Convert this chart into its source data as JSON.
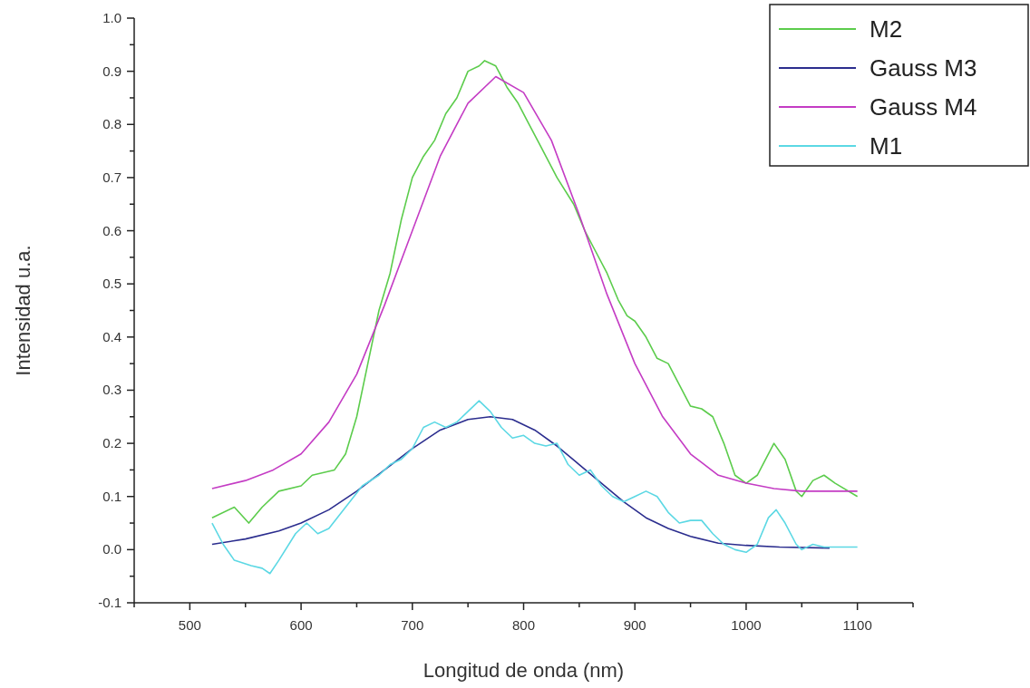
{
  "chart_data": {
    "type": "line",
    "xlabel": "Longitud de onda (nm)",
    "ylabel": "Intensidad u.a.",
    "xlim": [
      450,
      1150
    ],
    "ylim": [
      -0.1,
      1.0
    ],
    "xticks": [
      {
        "value": 450,
        "label": null
      },
      500,
      {
        "value": 550,
        "label": null
      },
      600,
      {
        "value": 650,
        "label": null
      },
      700,
      {
        "value": 750,
        "label": null
      },
      800,
      {
        "value": 850,
        "label": null
      },
      900,
      {
        "value": 950,
        "label": null
      },
      1000,
      {
        "value": 1050,
        "label": null
      },
      1100,
      {
        "value": 1150,
        "label": null
      }
    ],
    "yticks": [
      -0.1,
      {
        "value": -0.05,
        "label": null
      },
      {
        "value": 0,
        "label": "0.0"
      },
      {
        "value": 0.05,
        "label": null
      },
      0.1,
      {
        "value": 0.15,
        "label": null
      },
      0.2,
      {
        "value": 0.25,
        "label": null
      },
      0.3,
      {
        "value": 0.35,
        "label": null
      },
      0.4,
      {
        "value": 0.45,
        "label": null
      },
      0.5,
      {
        "value": 0.55,
        "label": null
      },
      0.6,
      {
        "value": 0.65,
        "label": null
      },
      0.7,
      {
        "value": 0.75,
        "label": null
      },
      0.8,
      {
        "value": 0.85,
        "label": null
      },
      0.9,
      {
        "value": 0.95,
        "label": null
      },
      {
        "value": 1,
        "label": "1.0"
      }
    ],
    "grid": false,
    "legend": "top right",
    "marker": "none",
    "line_style": "solid",
    "series": [
      {
        "name": "M2",
        "color": "#5ccc4c",
        "x": [
          520,
          540,
          553,
          565,
          580,
          600,
          610,
          630,
          640,
          650,
          660,
          670,
          680,
          690,
          700,
          710,
          720,
          730,
          740,
          750,
          760,
          765,
          775,
          785,
          795,
          805,
          815,
          830,
          845,
          855,
          865,
          875,
          885,
          893,
          900,
          910,
          920,
          930,
          940,
          950,
          960,
          970,
          980,
          990,
          1000,
          1010,
          1025,
          1035,
          1045,
          1050,
          1060,
          1070,
          1080,
          1100
        ],
        "values": [
          0.06,
          0.08,
          0.05,
          0.08,
          0.11,
          0.12,
          0.14,
          0.15,
          0.18,
          0.25,
          0.35,
          0.45,
          0.52,
          0.62,
          0.7,
          0.74,
          0.77,
          0.82,
          0.85,
          0.9,
          0.91,
          0.92,
          0.91,
          0.87,
          0.84,
          0.8,
          0.76,
          0.7,
          0.65,
          0.6,
          0.56,
          0.52,
          0.47,
          0.44,
          0.43,
          0.4,
          0.36,
          0.35,
          0.31,
          0.27,
          0.265,
          0.25,
          0.2,
          0.14,
          0.125,
          0.14,
          0.2,
          0.17,
          0.11,
          0.1,
          0.13,
          0.14,
          0.125,
          0.1
        ]
      },
      {
        "name": "Gauss M3",
        "color": "#2b2d8e",
        "x": [
          520,
          550,
          580,
          600,
          625,
          650,
          675,
          700,
          725,
          750,
          770,
          790,
          810,
          830,
          850,
          870,
          890,
          910,
          930,
          950,
          975,
          1000,
          1030,
          1075
        ],
        "values": [
          0.01,
          0.02,
          0.035,
          0.05,
          0.075,
          0.11,
          0.15,
          0.19,
          0.225,
          0.245,
          0.25,
          0.245,
          0.225,
          0.195,
          0.16,
          0.125,
          0.09,
          0.06,
          0.04,
          0.025,
          0.012,
          0.008,
          0.005,
          0.003
        ]
      },
      {
        "name": "Gauss M4",
        "color": "#c43cc4",
        "x": [
          520,
          550,
          575,
          600,
          625,
          650,
          675,
          700,
          725,
          750,
          775,
          800,
          825,
          850,
          875,
          900,
          925,
          950,
          975,
          1000,
          1025,
          1050,
          1100
        ],
        "values": [
          0.115,
          0.13,
          0.15,
          0.18,
          0.24,
          0.33,
          0.46,
          0.6,
          0.74,
          0.84,
          0.89,
          0.86,
          0.77,
          0.63,
          0.48,
          0.35,
          0.25,
          0.18,
          0.14,
          0.125,
          0.115,
          0.11,
          0.11
        ]
      },
      {
        "name": "M1",
        "color": "#5cd8e4",
        "x": [
          520,
          530,
          540,
          555,
          565,
          572,
          580,
          595,
          605,
          615,
          625,
          640,
          655,
          670,
          680,
          690,
          700,
          710,
          720,
          730,
          740,
          750,
          760,
          770,
          780,
          790,
          800,
          810,
          820,
          830,
          840,
          850,
          860,
          870,
          880,
          890,
          900,
          910,
          920,
          930,
          940,
          950,
          960,
          970,
          980,
          990,
          1000,
          1010,
          1020,
          1027,
          1035,
          1045,
          1050,
          1060,
          1070,
          1080,
          1100
        ],
        "values": [
          0.05,
          0.01,
          -0.02,
          -0.03,
          -0.035,
          -0.045,
          -0.02,
          0.03,
          0.05,
          0.03,
          0.04,
          0.08,
          0.12,
          0.14,
          0.16,
          0.17,
          0.19,
          0.23,
          0.24,
          0.23,
          0.24,
          0.26,
          0.28,
          0.26,
          0.23,
          0.21,
          0.215,
          0.2,
          0.195,
          0.2,
          0.16,
          0.14,
          0.15,
          0.12,
          0.1,
          0.09,
          0.1,
          0.11,
          0.1,
          0.07,
          0.05,
          0.055,
          0.055,
          0.03,
          0.01,
          0.0,
          -0.005,
          0.01,
          0.06,
          0.075,
          0.05,
          0.01,
          0.0,
          0.01,
          0.005,
          0.005,
          0.005
        ]
      }
    ]
  }
}
